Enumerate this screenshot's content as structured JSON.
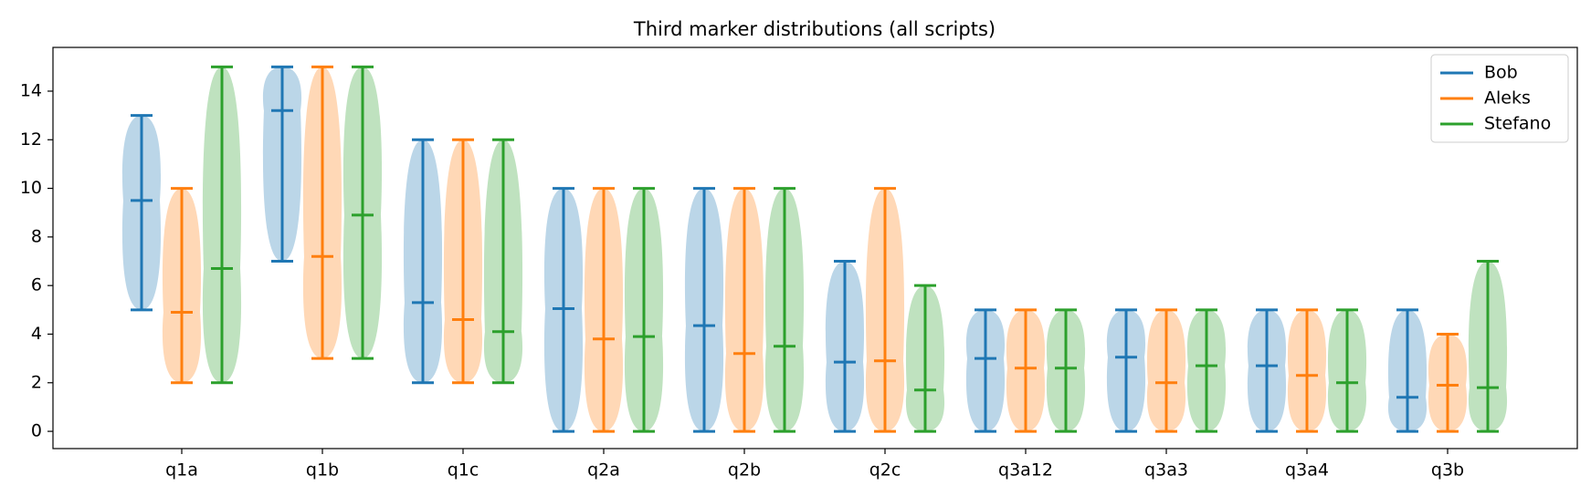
{
  "chart_data": {
    "type": "violin",
    "title": "Third marker distributions (all scripts)",
    "categories": [
      "q1a",
      "q1b",
      "q1c",
      "q2a",
      "q2b",
      "q2c",
      "q3a12",
      "q3a3",
      "q3a4",
      "q3b"
    ],
    "series": [
      {
        "name": "Bob",
        "color": "#1f77b4",
        "min": [
          5,
          7,
          2,
          0,
          0,
          0,
          0,
          0,
          0,
          0
        ],
        "mean": [
          9.5,
          13.2,
          5.3,
          5.05,
          4.35,
          2.85,
          3.0,
          3.05,
          2.7,
          1.4
        ],
        "max": [
          13,
          15,
          12,
          10,
          10,
          7,
          5,
          5,
          5,
          5
        ]
      },
      {
        "name": "Aleks",
        "color": "#ff7f0e",
        "min": [
          2,
          3,
          2,
          0,
          0,
          0,
          0,
          0,
          0,
          0
        ],
        "mean": [
          4.9,
          7.2,
          4.6,
          3.8,
          3.2,
          2.9,
          2.6,
          2.0,
          2.3,
          1.9
        ],
        "max": [
          10,
          15,
          12,
          10,
          10,
          10,
          5,
          5,
          5,
          4
        ]
      },
      {
        "name": "Stefano",
        "color": "#2ca02c",
        "min": [
          2,
          3,
          2,
          0,
          0,
          0,
          0,
          0,
          0,
          0
        ],
        "mean": [
          6.7,
          8.9,
          4.1,
          3.9,
          3.5,
          1.7,
          2.6,
          2.7,
          2.0,
          1.8
        ],
        "max": [
          15,
          15,
          12,
          10,
          10,
          6,
          5,
          5,
          5,
          7
        ]
      }
    ],
    "ylim": [
      -0.71,
      15.8
    ],
    "yticks": [
      0,
      2,
      4,
      6,
      8,
      10,
      12,
      14
    ],
    "legend": "upper right"
  }
}
